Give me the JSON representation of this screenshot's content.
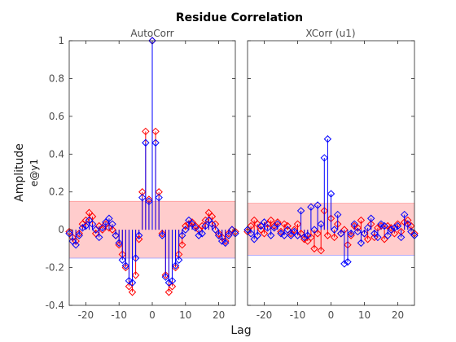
{
  "figure": {
    "title": "Residue Correlation",
    "xlabel": "Lag",
    "ylabel": "Amplitude",
    "ylabel2": "e@y1"
  },
  "colors": {
    "series_a": "#ff0000",
    "series_b": "#0000ff",
    "band": "#ffcccc",
    "axes": "#262626"
  },
  "chart_data": [
    {
      "type": "stem",
      "title": "AutoCorr",
      "xlim": [
        -25,
        25
      ],
      "ylim": [
        -0.4,
        1
      ],
      "xticks": [
        -20,
        -10,
        0,
        10,
        20
      ],
      "yticks": [
        -0.4,
        -0.2,
        0,
        0.2,
        0.4,
        0.6,
        0.8,
        1
      ],
      "ytick_labels": [
        "-0.4",
        "-0.2",
        "0",
        "0.2",
        "0.4",
        "0.6",
        "0.8",
        "1"
      ],
      "xtick_labels": [
        "-20",
        "-10",
        "0",
        "10",
        "20"
      ],
      "confidence_band": [
        -0.15,
        0.15
      ],
      "x": [
        -25,
        -24,
        -23,
        -22,
        -21,
        -20,
        -19,
        -18,
        -17,
        -16,
        -15,
        -14,
        -13,
        -12,
        -11,
        -10,
        -9,
        -8,
        -7,
        -6,
        -5,
        -4,
        -3,
        -2,
        -1,
        0,
        1,
        2,
        3,
        4,
        5,
        6,
        7,
        8,
        9,
        10,
        11,
        12,
        13,
        14,
        15,
        16,
        17,
        18,
        19,
        20,
        21,
        22,
        23,
        24,
        25
      ],
      "series": [
        {
          "color": "#ff0000",
          "values": [
            -0.01,
            -0.04,
            -0.06,
            -0.02,
            0.03,
            0.05,
            0.09,
            0.07,
            -0.02,
            0.02,
            0.0,
            0.03,
            0.01,
            0.0,
            -0.03,
            -0.08,
            -0.13,
            -0.2,
            -0.3,
            -0.33,
            -0.24,
            -0.05,
            0.2,
            0.52,
            0.16,
            1.0,
            0.52,
            0.2,
            -0.02,
            -0.24,
            -0.33,
            -0.3,
            -0.2,
            -0.13,
            -0.08,
            0.02,
            0.03,
            0.04,
            0.02,
            0.0,
            0.02,
            0.05,
            0.09,
            0.07,
            0.03,
            -0.02,
            -0.04,
            -0.06,
            -0.02,
            0.0,
            -0.01
          ]
        },
        {
          "color": "#0000ff",
          "values": [
            -0.02,
            -0.06,
            -0.08,
            -0.03,
            0.01,
            0.02,
            0.05,
            0.03,
            0.0,
            -0.04,
            0.01,
            0.04,
            0.06,
            0.03,
            -0.03,
            -0.07,
            -0.16,
            -0.19,
            -0.27,
            -0.28,
            -0.15,
            -0.03,
            0.17,
            0.46,
            0.15,
            1.0,
            0.46,
            0.17,
            -0.03,
            -0.25,
            -0.28,
            -0.27,
            -0.19,
            -0.16,
            -0.03,
            0.0,
            0.05,
            0.03,
            0.01,
            -0.03,
            -0.02,
            0.02,
            0.05,
            0.03,
            0.0,
            -0.03,
            -0.06,
            -0.07,
            -0.03,
            0.0,
            -0.02
          ]
        }
      ]
    },
    {
      "type": "stem",
      "title": "XCorr (u1)",
      "xlim": [
        -25,
        25
      ],
      "ylim": [
        -0.4,
        1
      ],
      "xticks": [
        -20,
        -10,
        0,
        10,
        20
      ],
      "xtick_labels": [
        "-20",
        "-10",
        "0",
        "10",
        "20"
      ],
      "confidence_band": [
        -0.135,
        0.14
      ],
      "x": [
        -25,
        -24,
        -23,
        -22,
        -21,
        -20,
        -19,
        -18,
        -17,
        -16,
        -15,
        -14,
        -13,
        -12,
        -11,
        -10,
        -9,
        -8,
        -7,
        -6,
        -5,
        -4,
        -3,
        -2,
        -1,
        0,
        1,
        2,
        3,
        4,
        5,
        6,
        7,
        8,
        9,
        10,
        11,
        12,
        13,
        14,
        15,
        16,
        17,
        18,
        19,
        20,
        21,
        22,
        23,
        24,
        25
      ],
      "series": [
        {
          "color": "#ff0000",
          "values": [
            -0.01,
            0.02,
            0.05,
            0.03,
            0.0,
            -0.02,
            0.03,
            0.05,
            0.02,
            0.04,
            -0.01,
            0.03,
            0.02,
            -0.02,
            0.0,
            0.03,
            -0.02,
            -0.05,
            -0.06,
            -0.04,
            -0.1,
            -0.02,
            -0.11,
            0.1,
            -0.03,
            0.06,
            -0.04,
            0.03,
            -0.02,
            0.0,
            -0.08,
            -0.03,
            0.02,
            0.01,
            0.05,
            -0.02,
            -0.05,
            0.03,
            -0.04,
            0.01,
            0.02,
            -0.05,
            0.02,
            0.01,
            -0.02,
            0.03,
            -0.01,
            0.04,
            0.05,
            0.02,
            -0.02
          ]
        },
        {
          "color": "#0000ff",
          "values": [
            0.0,
            -0.02,
            -0.05,
            -0.03,
            0.02,
            0.04,
            0.01,
            -0.03,
            0.01,
            0.03,
            -0.02,
            -0.03,
            0.0,
            -0.03,
            -0.01,
            -0.03,
            0.1,
            -0.04,
            -0.03,
            0.12,
            0.0,
            0.13,
            0.03,
            0.38,
            0.48,
            0.19,
            0.0,
            0.08,
            -0.02,
            -0.18,
            -0.17,
            -0.02,
            0.03,
            -0.01,
            -0.07,
            -0.02,
            0.01,
            0.06,
            -0.02,
            -0.04,
            0.03,
            0.02,
            -0.03,
            0.0,
            0.01,
            0.02,
            -0.04,
            0.08,
            0.03,
            -0.01,
            -0.03
          ]
        }
      ]
    }
  ]
}
